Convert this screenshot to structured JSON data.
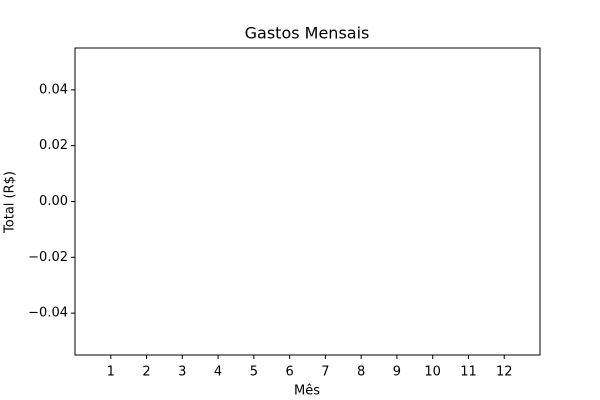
{
  "chart_data": {
    "type": "bar",
    "title": "Gastos Mensais",
    "xlabel": "Mês",
    "ylabel": "Total (R$)",
    "xlim": [
      0,
      13
    ],
    "xticks": [
      1,
      2,
      3,
      4,
      5,
      6,
      7,
      8,
      9,
      10,
      11,
      12
    ],
    "ylim": [
      -0.055,
      0.055
    ],
    "yticks": [
      {
        "value": -0.04,
        "label": "−0.04"
      },
      {
        "value": -0.02,
        "label": "−0.02"
      },
      {
        "value": 0,
        "label": "0.00"
      },
      0.02,
      0.04
    ]
  }
}
